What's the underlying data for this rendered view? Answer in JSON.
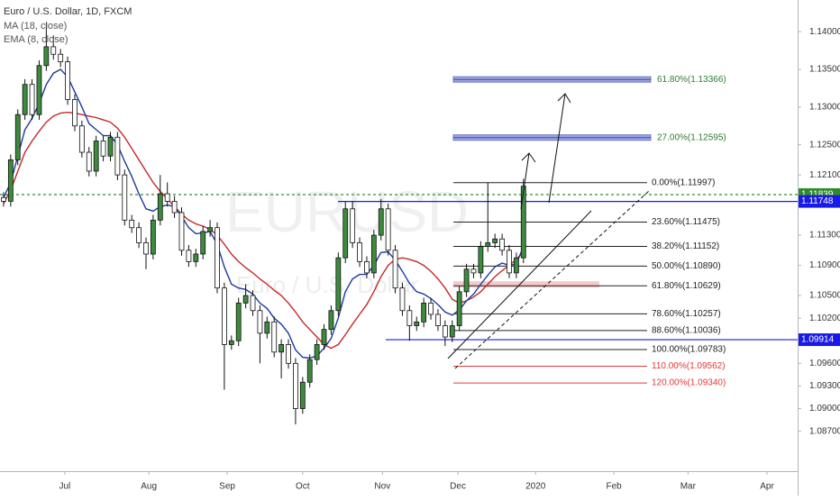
{
  "chart_data": {
    "type": "candlestick",
    "title": "Euro / U.S. Dollar, 1D, FXCM",
    "watermark": "EURUSD",
    "watermark_subtitle": "Euro / U.S. Dollar",
    "up_color": "#3d8b3d",
    "down_color": "#ffffff",
    "open": [
      1.118,
      1.1175,
      1.123,
      1.129,
      1.133,
      1.129,
      1.1355,
      1.138,
      1.137,
      1.136,
      1.131,
      1.1275,
      1.124,
      1.1215,
      1.1255,
      1.1235,
      1.126,
      1.121,
      1.115,
      1.114,
      1.112,
      1.1105,
      1.115,
      1.1185,
      1.1175,
      1.116,
      1.111,
      1.1095,
      1.1105,
      1.1135,
      1.114,
      1.106,
      1.0985,
      1.099,
      1.104,
      1.105,
      1.103,
      1.1,
      1.1015,
      1.0975,
      1.0985,
      1.096,
      1.09,
      1.0935,
      1.0965,
      1.0985,
      1.1005,
      1.103,
      1.11,
      1.1165,
      1.112,
      1.1095,
      1.108,
      1.113,
      1.1165,
      1.111,
      1.106,
      1.103,
      1.101,
      1.1015,
      1.104,
      1.1025,
      1.101,
      1.0995,
      1.101,
      1.1055,
      1.1085,
      1.108,
      1.1115,
      1.112,
      1.1125,
      1.111,
      1.108,
      1.11
    ],
    "high": [
      1.1187,
      1.1237,
      1.1297,
      1.1337,
      1.1337,
      1.1362,
      1.1412,
      1.1395,
      1.1377,
      1.1367,
      1.1317,
      1.1282,
      1.1247,
      1.1262,
      1.1262,
      1.1267,
      1.1267,
      1.1217,
      1.1157,
      1.1147,
      1.1127,
      1.1157,
      1.121,
      1.12,
      1.1182,
      1.1167,
      1.1117,
      1.1112,
      1.1142,
      1.115,
      1.1147,
      1.1067,
      1.0997,
      1.1047,
      1.1065,
      1.1057,
      1.1037,
      1.1022,
      1.1022,
      1.0992,
      1.0992,
      1.0967,
      1.0942,
      1.0972,
      1.0992,
      1.1012,
      1.1037,
      1.1107,
      1.1175,
      1.1175,
      1.1127,
      1.1102,
      1.1137,
      1.1178,
      1.1172,
      1.1117,
      1.1067,
      1.1037,
      1.1022,
      1.1047,
      1.1047,
      1.1032,
      1.1017,
      1.1017,
      1.1062,
      1.1092,
      1.1092,
      1.1122,
      1.12,
      1.1132,
      1.1132,
      1.1117,
      1.1107,
      1.1205
    ],
    "low": [
      1.1168,
      1.1168,
      1.1223,
      1.1283,
      1.1283,
      1.1283,
      1.1348,
      1.1363,
      1.1353,
      1.1303,
      1.1268,
      1.1233,
      1.1208,
      1.1208,
      1.1228,
      1.1228,
      1.1203,
      1.1143,
      1.1133,
      1.1113,
      1.1085,
      1.1098,
      1.1143,
      1.1168,
      1.1153,
      1.1103,
      1.1088,
      1.1088,
      1.1098,
      1.1128,
      1.1053,
      1.0925,
      1.0978,
      1.0983,
      1.1033,
      1.1023,
      1.096,
      1.0993,
      1.0968,
      1.094,
      1.0953,
      1.0879,
      1.0893,
      1.0928,
      1.0958,
      1.0978,
      1.0998,
      1.1023,
      1.1093,
      1.1113,
      1.1088,
      1.1073,
      1.1073,
      1.1123,
      1.1103,
      1.1053,
      1.1023,
      1.099,
      1.1003,
      1.1008,
      1.1018,
      1.1003,
      1.0983,
      1.0988,
      1.1003,
      1.1048,
      1.1073,
      1.1073,
      1.1108,
      1.1113,
      1.1103,
      1.1073,
      1.1073,
      1.1093
    ],
    "close": [
      1.1175,
      1.123,
      1.129,
      1.133,
      1.129,
      1.1355,
      1.138,
      1.137,
      1.136,
      1.131,
      1.1275,
      1.124,
      1.1215,
      1.1255,
      1.1235,
      1.126,
      1.121,
      1.115,
      1.114,
      1.112,
      1.1105,
      1.115,
      1.1185,
      1.1175,
      1.116,
      1.111,
      1.1095,
      1.1105,
      1.1135,
      1.114,
      1.106,
      1.0985,
      1.099,
      1.104,
      1.105,
      1.103,
      1.1,
      1.1015,
      1.0975,
      1.0985,
      1.096,
      1.09,
      1.0935,
      1.0965,
      1.0985,
      1.1005,
      1.103,
      1.11,
      1.1165,
      1.112,
      1.1095,
      1.108,
      1.113,
      1.1165,
      1.111,
      1.106,
      1.103,
      1.101,
      1.1015,
      1.104,
      1.1025,
      1.101,
      1.0995,
      1.101,
      1.1055,
      1.1085,
      1.108,
      1.1115,
      1.112,
      1.1125,
      1.111,
      1.108,
      1.11,
      1.1195
    ],
    "series": [
      {
        "name": "MA (18, close)",
        "color": "#c62828",
        "values": [
          1.1172,
          1.119,
          1.1215,
          1.124,
          1.1255,
          1.1268,
          1.128,
          1.1288,
          1.1292,
          1.1293,
          1.1292,
          1.129,
          1.1288,
          1.1286,
          1.1283,
          1.128,
          1.1272,
          1.126,
          1.1245,
          1.123,
          1.1215,
          1.12,
          1.1188,
          1.1178,
          1.1168,
          1.1158,
          1.115,
          1.1145,
          1.1142,
          1.1138,
          1.113,
          1.1118,
          1.1105,
          1.1095,
          1.1087,
          1.108,
          1.1072,
          1.1065,
          1.1057,
          1.105,
          1.104,
          1.1028,
          1.1015,
          1.1005,
          1.0995,
          1.0985,
          1.098,
          1.0985,
          1.0998,
          1.1012,
          1.1025,
          1.1038,
          1.1055,
          1.1075,
          1.109,
          1.1098,
          1.11,
          1.1098,
          1.1095,
          1.109,
          1.1082,
          1.1072,
          1.106,
          1.1045,
          1.104,
          1.1043,
          1.1048,
          1.1055,
          1.1065,
          1.1075,
          1.1083,
          1.109,
          1.1098,
          1.1108
        ]
      },
      {
        "name": "EMA (8, close)",
        "color": "#1f3a9e",
        "values": [
          1.118,
          1.12,
          1.1235,
          1.127,
          1.1285,
          1.1305,
          1.133,
          1.1345,
          1.135,
          1.134,
          1.132,
          1.13,
          1.1278,
          1.127,
          1.1262,
          1.1262,
          1.125,
          1.1228,
          1.1208,
          1.1185,
          1.1165,
          1.1162,
          1.1168,
          1.117,
          1.1168,
          1.1155,
          1.114,
          1.1132,
          1.1133,
          1.1135,
          1.1118,
          1.1088,
          1.1065,
          1.106,
          1.1058,
          1.1052,
          1.104,
          1.1033,
          1.102,
          1.1012,
          1.1,
          1.0978,
          1.0968,
          1.0967,
          1.097,
          1.098,
          1.0993,
          1.102,
          1.1055,
          1.1072,
          1.1078,
          1.1078,
          1.109,
          1.1107,
          1.1108,
          1.1097,
          1.1082,
          1.1066,
          1.1055,
          1.1052,
          1.1046,
          1.1038,
          1.1028,
          1.1024,
          1.1031,
          1.1043,
          1.1052,
          1.1065,
          1.1077,
          1.1088,
          1.1093,
          1.109,
          1.1092,
          1.1115
        ]
      }
    ],
    "fib_levels": [
      {
        "value": 1.11997,
        "label": "0.00%(1.11997)",
        "color": "#222222"
      },
      {
        "value": 1.11475,
        "label": "23.60%(1.11475)",
        "color": "#222222"
      },
      {
        "value": 1.11152,
        "label": "38.20%(1.11152)",
        "color": "#222222"
      },
      {
        "value": 1.1089,
        "label": "50.00%(1.10890)",
        "color": "#222222"
      },
      {
        "value": 1.10629,
        "label": "61.80%(1.10629)",
        "color": "#222222"
      },
      {
        "value": 1.10257,
        "label": "78.60%(1.10257)",
        "color": "#222222"
      },
      {
        "value": 1.10036,
        "label": "88.60%(1.10036)",
        "color": "#222222"
      },
      {
        "value": 1.09783,
        "label": "100.00%(1.09783)",
        "color": "#222222"
      },
      {
        "value": 1.09562,
        "label": "110.00%(1.09562)",
        "color": "#e53935"
      },
      {
        "value": 1.0934,
        "label": "120.00%(1.09340)",
        "color": "#e53935"
      }
    ],
    "targets": [
      {
        "value": 1.13366,
        "label": "61.80%(1.13366)",
        "color": "#2e7d32"
      },
      {
        "value": 1.12595,
        "label": "27.00%(1.12595)",
        "color": "#2e7d32"
      }
    ],
    "price_lines": [
      {
        "value": 1.11839,
        "label": "1.11839",
        "color": "#2e8b2e",
        "style": "dashed"
      },
      {
        "value": 1.11748,
        "label": "1.11748",
        "color": "#1a1ae6",
        "style": "solid"
      },
      {
        "value": 1.09914,
        "label": "1.09914",
        "color": "#1a1ae6",
        "style": "solid"
      }
    ],
    "xlim": [
      -0.5,
      111.5
    ],
    "xticks": [
      {
        "value": 8.6,
        "label": "Jul"
      },
      {
        "value": 20.4,
        "label": "Aug"
      },
      {
        "value": 31.4,
        "label": "Sep"
      },
      {
        "value": 42,
        "label": "Oct"
      },
      {
        "value": 53.2,
        "label": "Nov"
      },
      {
        "value": 63.8,
        "label": "Dec"
      },
      {
        "value": 74.7,
        "label": "2020"
      },
      {
        "value": 85.7,
        "label": "Feb"
      },
      {
        "value": 96.1,
        "label": "Mar"
      },
      {
        "value": 107.2,
        "label": "Apr"
      }
    ],
    "ylim": [
      1.0817,
      1.1442
    ],
    "yticks": [
      {
        "value": 1.14,
        "label": "1.14000"
      },
      {
        "value": 1.135,
        "label": "1.13500"
      },
      {
        "value": 1.13,
        "label": "1.13000"
      },
      {
        "value": 1.125,
        "label": "1.12500"
      },
      {
        "value": 1.121,
        "label": "1.12100"
      },
      {
        "value": 1.113,
        "label": "1.11300"
      },
      {
        "value": 1.109,
        "label": "1.10900"
      },
      {
        "value": 1.105,
        "label": "1.10500"
      },
      {
        "value": 1.102,
        "label": "1.10200"
      },
      {
        "value": 1.096,
        "label": "1.09600"
      },
      {
        "value": 1.093,
        "label": "1.09300"
      },
      {
        "value": 1.09,
        "label": "1.09000"
      },
      {
        "value": 1.087,
        "label": "1.08700"
      }
    ]
  }
}
